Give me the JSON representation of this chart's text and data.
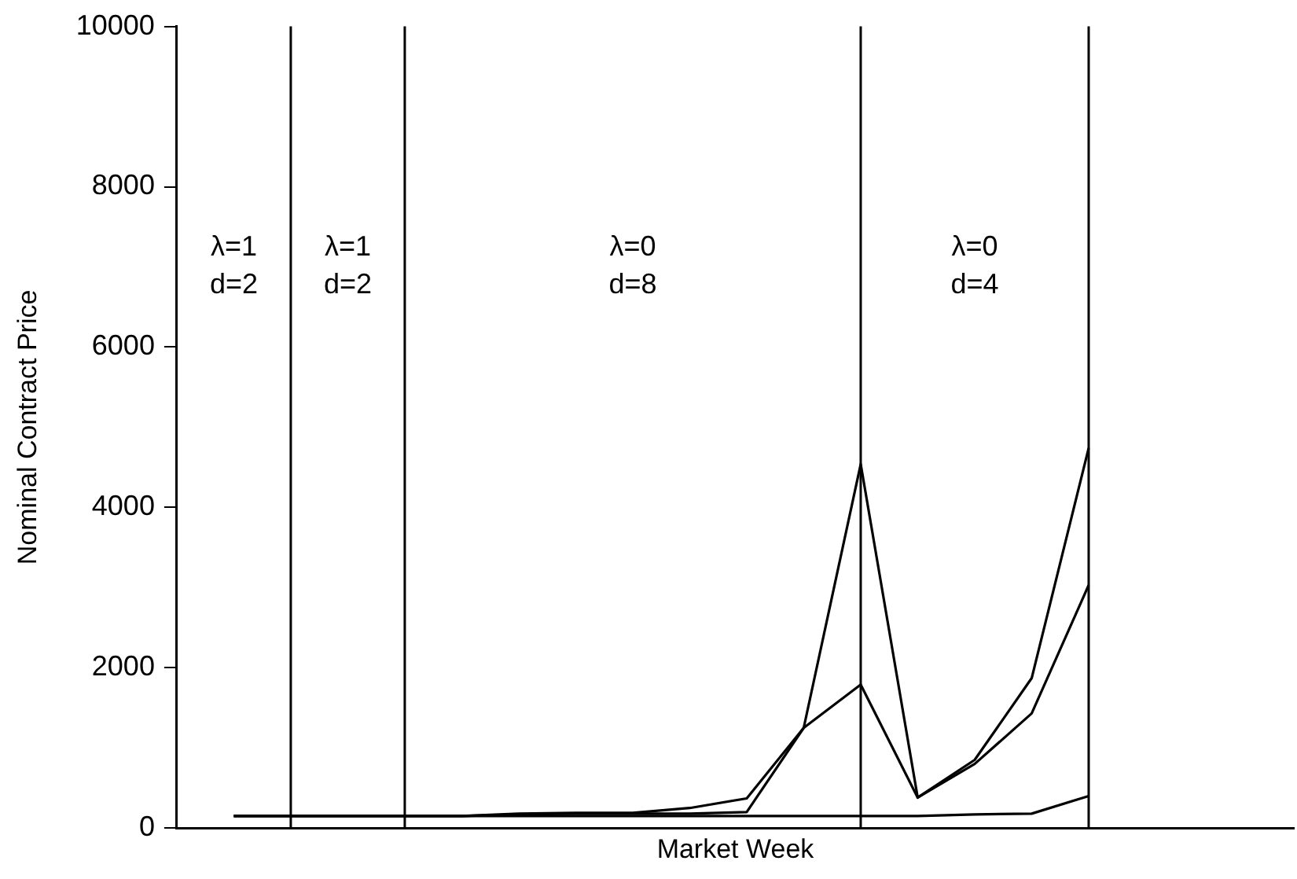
{
  "chart_data": {
    "type": "line",
    "xlabel": "Market Week",
    "ylabel": "Nominal Contract Price",
    "categories": [
      null,
      null,
      null,
      null,
      null,
      null,
      null,
      null,
      null,
      null,
      null,
      null,
      null,
      null,
      null,
      null
    ],
    "series": [
      {
        "color": "#000000",
        "values": [
          150,
          150,
          150,
          150,
          150,
          180,
          190,
          190,
          250,
          370,
          1250,
          4540,
          380,
          850,
          1870,
          4740
        ]
      },
      {
        "color": "#000000",
        "values": [
          150,
          150,
          150,
          150,
          150,
          170,
          180,
          180,
          180,
          200,
          1250,
          1790,
          380,
          800,
          1430,
          3030
        ]
      },
      {
        "color": "#000000",
        "values": [
          150,
          150,
          150,
          150,
          150,
          150,
          150,
          150,
          150,
          150,
          150,
          150,
          150,
          170,
          180,
          400
        ]
      }
    ],
    "ylim": [
      0,
      10000
    ],
    "yticks": [
      0,
      2000,
      4000,
      6000,
      8000,
      10000
    ],
    "tick_labels": "y",
    "legend": false,
    "marker": "none",
    "line_style": "solid",
    "grid": "x",
    "annotations": [
      "λ=1\nd=2",
      "λ=1\nd=2",
      "λ=0\nd=8",
      "λ=0\nd=4"
    ]
  }
}
